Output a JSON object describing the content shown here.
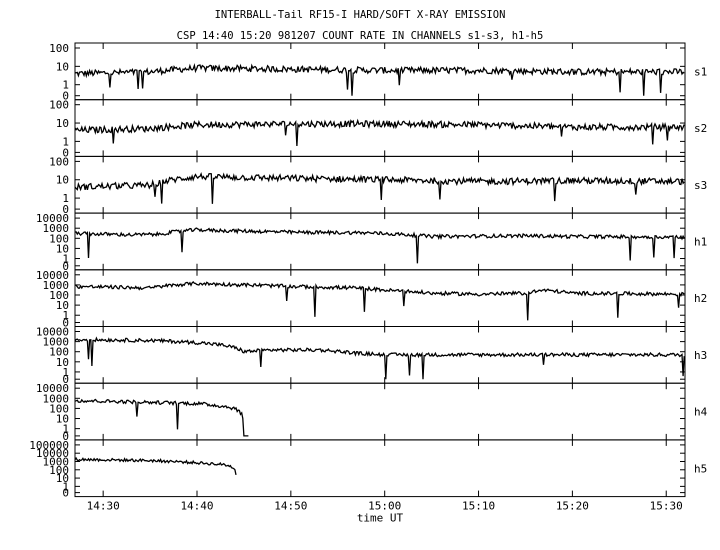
{
  "title_line1": "INTERBALL-Tail RF15-I HARD/SOFT X-RAY EMISSION",
  "title_line2": "CSP 14:40 15:20 981207  COUNT RATE IN CHANNELS s1-s3, h1-h5",
  "chart_data": {
    "type": "line",
    "xlabel": "time UT",
    "x_ticks": [
      "14:30",
      "14:40",
      "14:50",
      "15:00",
      "15:10",
      "15:20",
      "15:30"
    ],
    "x_range": [
      "14:27",
      "15:32"
    ],
    "y_scale": "log",
    "panels": [
      {
        "name": "s1",
        "yticks": [
          "100",
          "10",
          "1",
          "0"
        ],
        "ymax_exp": 2,
        "baseline": 7,
        "points": [
          [
            "14:27",
            4
          ],
          [
            "14:35",
            5
          ],
          [
            "14:40",
            8
          ],
          [
            "14:50",
            7
          ],
          [
            "15:00",
            6
          ],
          [
            "15:10",
            6
          ],
          [
            "15:20",
            5
          ],
          [
            "15:32",
            5
          ]
        ]
      },
      {
        "name": "s2",
        "yticks": [
          "100",
          "10",
          "1",
          "0"
        ],
        "ymax_exp": 2,
        "baseline": 5,
        "points": [
          [
            "14:27",
            4
          ],
          [
            "14:35",
            5
          ],
          [
            "14:40",
            8
          ],
          [
            "14:50",
            9
          ],
          [
            "15:00",
            9
          ],
          [
            "15:10",
            8
          ],
          [
            "15:20",
            6
          ],
          [
            "15:32",
            6
          ]
        ]
      },
      {
        "name": "s3",
        "yticks": [
          "100",
          "10",
          "1",
          "0"
        ],
        "ymax_exp": 2,
        "baseline": 3,
        "points": [
          [
            "14:27",
            4
          ],
          [
            "14:35",
            5
          ],
          [
            "14:40",
            15
          ],
          [
            "14:50",
            12
          ],
          [
            "15:00",
            10
          ],
          [
            "15:10",
            8
          ],
          [
            "15:20",
            9
          ],
          [
            "15:32",
            8
          ]
        ]
      },
      {
        "name": "h1",
        "yticks": [
          "10000",
          "1000",
          "100",
          "10",
          "1",
          "0"
        ],
        "ymax_exp": 4,
        "baseline": 6,
        "points": [
          [
            "14:27",
            300
          ],
          [
            "14:33",
            220
          ],
          [
            "14:36",
            250
          ],
          [
            "14:40",
            700
          ],
          [
            "14:42",
            600
          ],
          [
            "14:50",
            400
          ],
          [
            "14:58",
            350
          ],
          [
            "15:05",
            150
          ],
          [
            "15:15",
            180
          ],
          [
            "15:20",
            150
          ],
          [
            "15:32",
            130
          ]
        ]
      },
      {
        "name": "h2",
        "yticks": [
          "10000",
          "1000",
          "100",
          "10",
          "1",
          "0"
        ],
        "ymax_exp": 4,
        "baseline": 4,
        "points": [
          [
            "14:27",
            700
          ],
          [
            "14:35",
            500
          ],
          [
            "14:40",
            1400
          ],
          [
            "14:42",
            1200
          ],
          [
            "14:50",
            700
          ],
          [
            "14:57",
            500
          ],
          [
            "15:00",
            300
          ],
          [
            "15:05",
            150
          ],
          [
            "15:10",
            120
          ],
          [
            "15:15",
            150
          ],
          [
            "15:17",
            300
          ],
          [
            "15:20",
            150
          ],
          [
            "15:32",
            120
          ]
        ]
      },
      {
        "name": "h3",
        "yticks": [
          "10000",
          "1000",
          "100",
          "10",
          "1",
          "0"
        ],
        "ymax_exp": 4,
        "baseline": 7,
        "points": [
          [
            "14:27",
            1600
          ],
          [
            "14:35",
            1300
          ],
          [
            "14:40",
            800
          ],
          [
            "14:43",
            400
          ],
          [
            "14:45",
            100
          ],
          [
            "14:48",
            150
          ],
          [
            "14:53",
            150
          ],
          [
            "14:57",
            70
          ],
          [
            "15:00",
            50
          ],
          [
            "15:32",
            50
          ]
        ]
      },
      {
        "name": "h4",
        "yticks": [
          "10000",
          "1000",
          "100",
          "10",
          "1",
          "0"
        ],
        "ymax_exp": 4,
        "baseline": 3,
        "points": [
          [
            "14:27",
            600
          ],
          [
            "14:35",
            400
          ],
          [
            "14:40",
            300
          ],
          [
            "14:43",
            150
          ],
          [
            "14:44",
            100
          ],
          [
            "14:45",
            0
          ],
          [
            "14:45.5",
            0
          ]
        ]
      },
      {
        "name": "h5",
        "yticks": [
          "100000",
          "10000",
          "1000",
          "100",
          "10",
          "1",
          "0"
        ],
        "ymax_exp": 5,
        "baseline": 5,
        "points": [
          [
            "14:27",
            1800
          ],
          [
            "14:35",
            1300
          ],
          [
            "14:40",
            700
          ],
          [
            "14:43",
            400
          ],
          [
            "14:44",
            150
          ],
          [
            "14:44.2",
            0
          ]
        ]
      }
    ]
  }
}
